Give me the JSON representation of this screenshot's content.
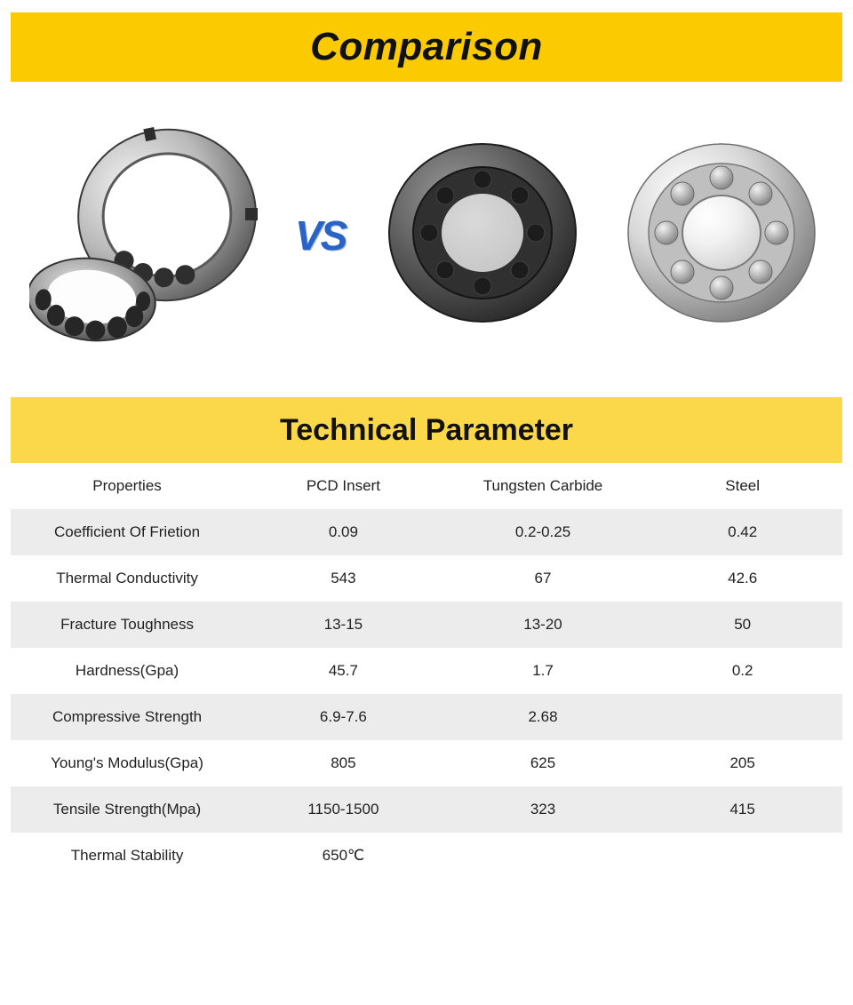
{
  "banner": {
    "title": "Comparison",
    "title_bg": "#fbca00",
    "title_color": "#111111",
    "title_fontsize": 44
  },
  "comparison_images": {
    "vs_text": "VS",
    "vs_color": "#2a63c6",
    "items": [
      {
        "name": "pcd-bearing-image"
      },
      {
        "name": "tungsten-carbide-bearing-image"
      },
      {
        "name": "steel-bearing-image"
      }
    ]
  },
  "subheader": {
    "title": "Technical Parameter",
    "bg": "#fad849",
    "color": "#111111",
    "fontsize": 34
  },
  "table": {
    "header_row_bg": "#ffffff",
    "row_alt_bg": "#ececec",
    "row_bg": "#ffffff",
    "text_color": "#222222",
    "fontsize": 17,
    "columns": [
      "Properties",
      "PCD Insert",
      "Tungsten Carbide",
      "Steel"
    ],
    "rows": [
      [
        "Coefficient Of Frietion",
        "0.09",
        "0.2-0.25",
        "0.42"
      ],
      [
        "Thermal Conductivity",
        "543",
        "67",
        "42.6"
      ],
      [
        "Fracture Toughness",
        "13-15",
        "13-20",
        "50"
      ],
      [
        "Hardness(Gpa)",
        "45.7",
        "1.7",
        "0.2"
      ],
      [
        "Compressive Strength",
        "6.9-7.6",
        "2.68",
        ""
      ],
      [
        "Young's Modulus(Gpa)",
        "805",
        "625",
        "205"
      ],
      [
        "Tensile Strength(Mpa)",
        "1150-1500",
        "323",
        "415"
      ],
      [
        "Thermal Stability",
        "650℃",
        "",
        ""
      ]
    ]
  }
}
